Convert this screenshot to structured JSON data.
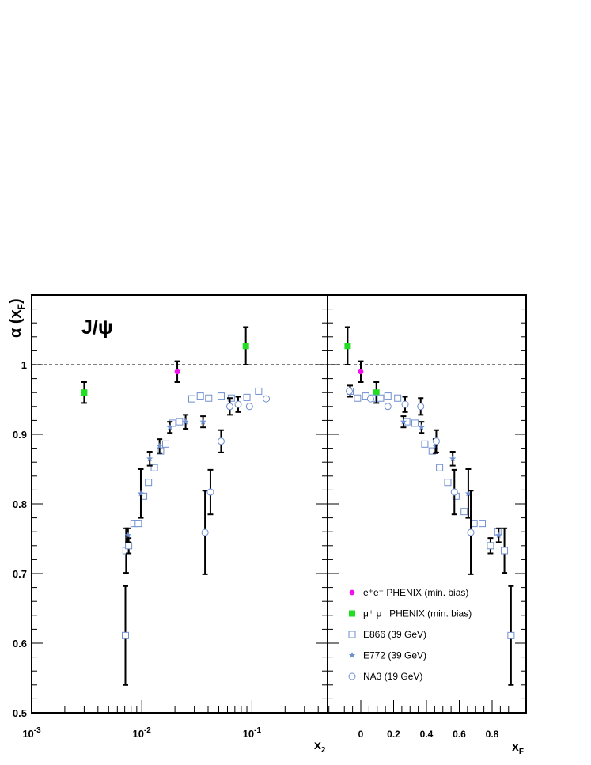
{
  "chart_data": {
    "type": "scatter",
    "title": "J/ψ",
    "ylabel": "α (x",
    "ylabel_sub": "F",
    "ylabel_close": ")",
    "ylim": [
      0.5,
      1.1
    ],
    "yticks": [
      "0.5",
      "0.6",
      "0.7",
      "0.8",
      "0.9",
      "1"
    ],
    "reference_line": 1.0,
    "colors": {
      "phenix_ee": "#ee11ee",
      "phenix_mumu": "#22dd22",
      "fixed_target": "#6f8fd0",
      "errorbar": "#000000",
      "reference": "#555555"
    },
    "panels": [
      {
        "id": "x2",
        "xlabel": "x",
        "xlabel_sub": "2",
        "xscale": "log",
        "xlim": [
          0.001,
          0.5
        ],
        "xticks": [
          {
            "value": 0.001,
            "base": "10",
            "exp": "-3"
          },
          {
            "value": 0.01,
            "base": "10",
            "exp": "-2"
          },
          {
            "value": 0.1,
            "base": "10",
            "exp": "-1"
          }
        ],
        "series": [
          {
            "name": "e⁺e⁻ PHENIX (min. bias)",
            "marker": "circle-filled",
            "color": "#ee11ee",
            "points": [
              {
                "x": 0.021,
                "y": 0.99,
                "err": 0.015
              }
            ]
          },
          {
            "name": "μ⁺ μ⁻ PHENIX (min. bias)",
            "marker": "square-filled",
            "color": "#22dd22",
            "points": [
              {
                "x": 0.003,
                "y": 0.96,
                "err": 0.015
              },
              {
                "x": 0.088,
                "y": 1.027,
                "err": 0.027
              }
            ]
          },
          {
            "name": "E866 (39 GeV)",
            "marker": "square-open",
            "color": "#6f8fd0",
            "points": [
              {
                "x": 0.0071,
                "y": 0.611,
                "err": 0.071
              },
              {
                "x": 0.0072,
                "y": 0.733,
                "err": 0.032
              },
              {
                "x": 0.0076,
                "y": 0.74,
                "err": 0.011
              },
              {
                "x": 0.0085,
                "y": 0.772
              },
              {
                "x": 0.0093,
                "y": 0.772
              },
              {
                "x": 0.0104,
                "y": 0.811
              },
              {
                "x": 0.0115,
                "y": 0.831
              },
              {
                "x": 0.013,
                "y": 0.852
              },
              {
                "x": 0.0148,
                "y": 0.876
              },
              {
                "x": 0.0165,
                "y": 0.886
              },
              {
                "x": 0.019,
                "y": 0.916
              },
              {
                "x": 0.022,
                "y": 0.918
              },
              {
                "x": 0.0285,
                "y": 0.951
              },
              {
                "x": 0.034,
                "y": 0.955
              },
              {
                "x": 0.0405,
                "y": 0.952
              },
              {
                "x": 0.0525,
                "y": 0.955
              },
              {
                "x": 0.065,
                "y": 0.952
              },
              {
                "x": 0.09,
                "y": 0.953
              },
              {
                "x": 0.115,
                "y": 0.962
              }
            ]
          },
          {
            "name": "E772 (39 GeV)",
            "marker": "star",
            "color": "#6f8fd0",
            "points": [
              {
                "x": 0.0075,
                "y": 0.755,
                "err": 0.01
              },
              {
                "x": 0.0098,
                "y": 0.815,
                "err": 0.035
              },
              {
                "x": 0.0118,
                "y": 0.865,
                "err": 0.01
              },
              {
                "x": 0.0145,
                "y": 0.883,
                "err": 0.01
              },
              {
                "x": 0.018,
                "y": 0.91,
                "err": 0.008
              },
              {
                "x": 0.025,
                "y": 0.918,
                "err": 0.01
              },
              {
                "x": 0.036,
                "y": 0.918,
                "err": 0.008
              }
            ]
          },
          {
            "name": "NA3 (19 GeV)",
            "marker": "circle-open",
            "color": "#6f8fd0",
            "points": [
              {
                "x": 0.0375,
                "y": 0.759,
                "err": 0.06
              },
              {
                "x": 0.042,
                "y": 0.817,
                "err": 0.032
              },
              {
                "x": 0.0525,
                "y": 0.89,
                "err": 0.016
              },
              {
                "x": 0.063,
                "y": 0.94,
                "err": 0.012
              },
              {
                "x": 0.075,
                "y": 0.943,
                "err": 0.011
              },
              {
                "x": 0.095,
                "y": 0.94
              },
              {
                "x": 0.135,
                "y": 0.951
              }
            ]
          }
        ]
      },
      {
        "id": "xF",
        "xlabel": "x",
        "xlabel_sub": "F",
        "xscale": "linear",
        "xlim": [
          -0.12,
          1.0
        ],
        "xticks": [
          {
            "value": 0,
            "label": "0"
          },
          {
            "value": 0.2,
            "label": "0.2"
          },
          {
            "value": 0.4,
            "label": "0.4"
          },
          {
            "value": 0.6,
            "label": "0.6"
          },
          {
            "value": 0.8,
            "label": "0.8"
          }
        ],
        "series": [
          {
            "name": "e⁺e⁻ PHENIX (min. bias)",
            "marker": "circle-filled",
            "color": "#ee11ee",
            "points": [
              {
                "x": 0.0,
                "y": 0.99,
                "err": 0.015
              }
            ]
          },
          {
            "name": "μ⁺ μ⁻ PHENIX (min. bias)",
            "marker": "square-filled",
            "color": "#22dd22",
            "points": [
              {
                "x": -0.08,
                "y": 1.027,
                "err": 0.027
              },
              {
                "x": 0.095,
                "y": 0.96,
                "err": 0.015
              }
            ]
          },
          {
            "name": "E866 (39 GeV)",
            "marker": "square-open",
            "color": "#6f8fd0",
            "points": [
              {
                "x": -0.065,
                "y": 0.962,
                "err": 0.008
              },
              {
                "x": -0.02,
                "y": 0.952
              },
              {
                "x": 0.03,
                "y": 0.955
              },
              {
                "x": 0.07,
                "y": 0.952
              },
              {
                "x": 0.12,
                "y": 0.952
              },
              {
                "x": 0.165,
                "y": 0.955
              },
              {
                "x": 0.225,
                "y": 0.952
              },
              {
                "x": 0.28,
                "y": 0.918
              },
              {
                "x": 0.33,
                "y": 0.916
              },
              {
                "x": 0.39,
                "y": 0.886
              },
              {
                "x": 0.435,
                "y": 0.876
              },
              {
                "x": 0.48,
                "y": 0.852
              },
              {
                "x": 0.53,
                "y": 0.831
              },
              {
                "x": 0.58,
                "y": 0.811
              },
              {
                "x": 0.63,
                "y": 0.789
              },
              {
                "x": 0.69,
                "y": 0.772
              },
              {
                "x": 0.74,
                "y": 0.772
              },
              {
                "x": 0.79,
                "y": 0.74,
                "err": 0.011
              },
              {
                "x": 0.835,
                "y": 0.76
              },
              {
                "x": 0.875,
                "y": 0.733,
                "err": 0.032
              },
              {
                "x": 0.915,
                "y": 0.611,
                "err": 0.071
              }
            ]
          },
          {
            "name": "E772 (39 GeV)",
            "marker": "star",
            "color": "#6f8fd0",
            "points": [
              {
                "x": 0.26,
                "y": 0.918,
                "err": 0.008
              },
              {
                "x": 0.37,
                "y": 0.91,
                "err": 0.008
              },
              {
                "x": 0.455,
                "y": 0.883,
                "err": 0.01
              },
              {
                "x": 0.56,
                "y": 0.865,
                "err": 0.01
              },
              {
                "x": 0.655,
                "y": 0.815,
                "err": 0.035
              },
              {
                "x": 0.84,
                "y": 0.755,
                "err": 0.01
              }
            ]
          },
          {
            "name": "NA3 (19 GeV)",
            "marker": "circle-open",
            "color": "#6f8fd0",
            "points": [
              {
                "x": -0.07,
                "y": 0.962
              },
              {
                "x": 0.06,
                "y": 0.951
              },
              {
                "x": 0.165,
                "y": 0.94
              },
              {
                "x": 0.27,
                "y": 0.943,
                "err": 0.011
              },
              {
                "x": 0.365,
                "y": 0.94,
                "err": 0.012
              },
              {
                "x": 0.46,
                "y": 0.89,
                "err": 0.016
              },
              {
                "x": 0.57,
                "y": 0.817,
                "err": 0.032
              },
              {
                "x": 0.67,
                "y": 0.759,
                "err": 0.06
              }
            ]
          }
        ]
      }
    ],
    "legend": {
      "placement": "bottom-right",
      "entries": [
        {
          "label": "e⁺e⁻ PHENIX (min. bias)",
          "marker": "circle-filled",
          "color": "#ee11ee"
        },
        {
          "label": "μ⁺ μ⁻ PHENIX (min. bias)",
          "marker": "square-filled",
          "color": "#22dd22"
        },
        {
          "label": "E866 (39 GeV)",
          "marker": "square-open",
          "color": "#6f8fd0"
        },
        {
          "label": "E772 (39 GeV)",
          "marker": "star",
          "color": "#6f8fd0"
        },
        {
          "label": "NA3 (19 GeV)",
          "marker": "circle-open",
          "color": "#6f8fd0"
        }
      ]
    }
  }
}
